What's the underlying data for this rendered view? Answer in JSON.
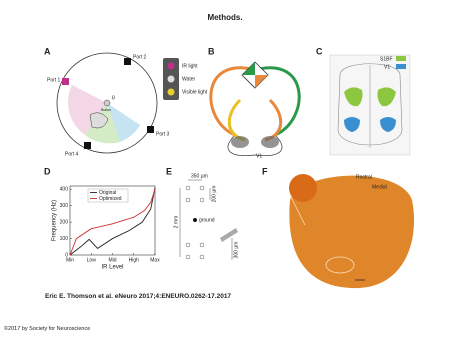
{
  "header": {
    "title": "Methods."
  },
  "panels": {
    "a": {
      "letter": "A",
      "ports": [
        "Port 1",
        "Port 2",
        "Port 3",
        "Port 4"
      ],
      "button": "Button",
      "angle": "θ",
      "lights": [
        "IR light",
        "Water",
        "Visible light"
      ]
    },
    "b": {
      "letter": "B",
      "area": "V1"
    },
    "c": {
      "letter": "C",
      "legend": [
        "S1BF",
        "V1"
      ]
    },
    "d": {
      "letter": "D"
    },
    "e": {
      "letter": "E",
      "labels": [
        "350 µm",
        "200 µm",
        "2 mm",
        "ground",
        "300 µm"
      ]
    },
    "f": {
      "letter": "F",
      "labels": [
        "Rostral",
        "Medial"
      ]
    }
  },
  "chart_data": {
    "type": "line",
    "xlabel": "IR Level",
    "ylabel": "Frequency (Hz)",
    "xlim": [
      0,
      4
    ],
    "ylim": [
      0,
      420
    ],
    "xticks": [
      {
        "value": 0,
        "label": "Min"
      },
      {
        "value": 1,
        "label": "Low"
      },
      {
        "value": 2,
        "label": "Mid"
      },
      {
        "value": 3,
        "label": "High"
      },
      {
        "value": 4,
        "label": "Max"
      }
    ],
    "yticks": [
      0,
      100,
      200,
      300,
      400
    ],
    "legend": "upper left",
    "series": [
      {
        "name": "Original",
        "color": "#222222",
        "x": [
          0,
          0.5,
          0.9,
          1.3,
          2,
          2.8,
          3.4,
          3.8,
          4
        ],
        "values": [
          0,
          50,
          95,
          40,
          100,
          150,
          200,
          280,
          410
        ]
      },
      {
        "name": "Optimized",
        "color": "#d03030",
        "x": [
          0,
          0.3,
          1,
          2,
          3,
          3.5,
          3.8,
          4
        ],
        "values": [
          0,
          100,
          160,
          190,
          230,
          270,
          320,
          400
        ]
      }
    ]
  },
  "citation": "Eric E. Thomson et al. eNeuro 2017;4:ENEURO.0262-17.2017",
  "copyright": "©2017 by Society for Neuroscience"
}
